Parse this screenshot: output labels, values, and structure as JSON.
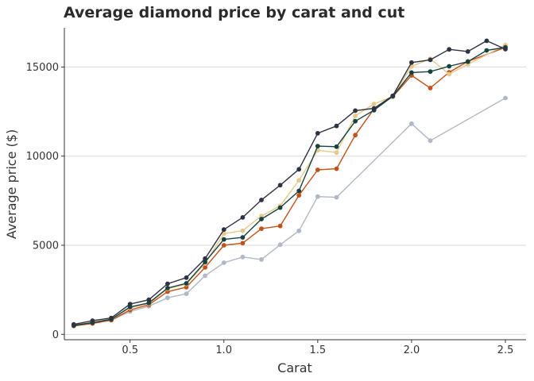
{
  "chart_data": {
    "type": "line",
    "title": "Average diamond price by carat and cut",
    "xlabel": "Carat",
    "ylabel": "Average price ($)",
    "xlim": [
      0.15,
      2.61
    ],
    "ylim": [
      -300,
      17200
    ],
    "x_ticks": [
      0.5,
      1.0,
      1.5,
      2.0,
      2.5
    ],
    "x_tick_labels": [
      "0.5",
      "1.0",
      "1.5",
      "2.0",
      "2.5"
    ],
    "y_ticks": [
      0,
      5000,
      10000,
      15000
    ],
    "y_tick_labels": [
      "0",
      "5000",
      "10000",
      "15000"
    ],
    "grid": "horizontal-major",
    "legend": "none",
    "series": [
      {
        "color": "#b0b8c4",
        "x": [
          0.3,
          0.4,
          0.5,
          0.6,
          0.7,
          0.8,
          0.9,
          1.0,
          1.1,
          1.2,
          1.3,
          1.4,
          1.5,
          1.6,
          2.0,
          2.1,
          2.5
        ],
        "y": [
          630,
          790,
          1280,
          1580,
          2050,
          2280,
          3290,
          4020,
          4340,
          4200,
          5030,
          5810,
          7730,
          7690,
          11820,
          10870,
          13260
        ]
      },
      {
        "color": "#c4501a",
        "x": [
          0.2,
          0.3,
          0.4,
          0.5,
          0.6,
          0.7,
          0.8,
          0.9,
          1.0,
          1.1,
          1.2,
          1.3,
          1.4,
          1.5,
          1.6,
          1.7,
          1.8,
          1.9,
          2.0,
          2.1,
          2.2,
          2.3,
          2.5
        ],
        "y": [
          470,
          610,
          800,
          1370,
          1660,
          2400,
          2650,
          3760,
          5000,
          5120,
          5930,
          6080,
          7800,
          9230,
          9290,
          11180,
          12650,
          13330,
          14530,
          13820,
          14700,
          15310,
          16100
        ]
      },
      {
        "color": "#e6c98a",
        "x": [
          0.2,
          0.3,
          0.4,
          0.5,
          0.6,
          0.7,
          0.8,
          0.9,
          1.0,
          1.1,
          1.2,
          1.3,
          1.4,
          1.5,
          1.6,
          1.7,
          1.8,
          1.9,
          2.0,
          2.1,
          2.2,
          2.3,
          2.5
        ],
        "y": [
          520,
          680,
          850,
          1480,
          1720,
          2560,
          2820,
          3980,
          5650,
          5820,
          6640,
          7210,
          8640,
          10330,
          10200,
          12260,
          12930,
          13340,
          15030,
          15460,
          14600,
          15150,
          16230
        ]
      },
      {
        "color": "#16433f",
        "x": [
          0.2,
          0.3,
          0.4,
          0.5,
          0.6,
          0.7,
          0.8,
          0.9,
          1.0,
          1.1,
          1.2,
          1.3,
          1.4,
          1.5,
          1.6,
          1.7,
          1.8,
          1.9,
          2.0,
          2.1,
          2.2,
          2.3,
          2.4,
          2.5
        ],
        "y": [
          500,
          660,
          850,
          1540,
          1760,
          2600,
          2860,
          4060,
          5330,
          5440,
          6470,
          7110,
          8050,
          10560,
          10530,
          11960,
          12580,
          13360,
          14690,
          14740,
          15040,
          15300,
          15930,
          16100
        ]
      },
      {
        "color": "#2e3242",
        "x": [
          0.2,
          0.3,
          0.4,
          0.5,
          0.6,
          0.7,
          0.8,
          0.9,
          1.0,
          1.1,
          1.2,
          1.3,
          1.4,
          1.5,
          1.6,
          1.7,
          1.8,
          1.9,
          2.0,
          2.1,
          2.2,
          2.3,
          2.4,
          2.5
        ],
        "y": [
          560,
          770,
          920,
          1700,
          1940,
          2840,
          3180,
          4250,
          5880,
          6560,
          7540,
          8370,
          9260,
          11280,
          11690,
          12550,
          12680,
          13390,
          15250,
          15400,
          15990,
          15870,
          16470,
          16000
        ]
      }
    ]
  }
}
